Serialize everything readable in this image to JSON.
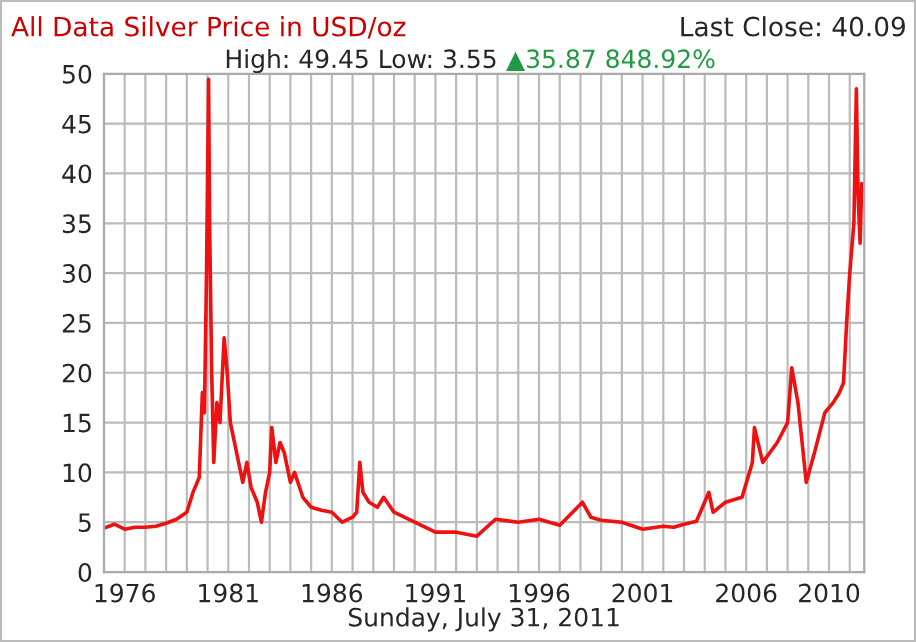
{
  "chart_data": {
    "type": "line",
    "title": "All Data Silver Price in USD/oz",
    "subtitle": "High: 49.45 Low: 3.55",
    "annotations": [
      "Last Close: 40.09",
      "▲35.87 848.92%"
    ],
    "xlabel": "Sunday, July 31, 2011",
    "x": [
      1975.0,
      1975.5,
      1976.0,
      1976.5,
      1977.0,
      1977.5,
      1978.0,
      1978.5,
      1979.0,
      1979.3,
      1979.6,
      1979.75,
      1979.85,
      1979.95,
      1980.05,
      1980.1,
      1980.2,
      1980.3,
      1980.45,
      1980.6,
      1980.8,
      1980.95,
      1981.1,
      1981.4,
      1981.7,
      1981.9,
      1982.1,
      1982.4,
      1982.6,
      1982.8,
      1983.0,
      1983.1,
      1983.3,
      1983.5,
      1983.7,
      1984.0,
      1984.2,
      1984.6,
      1985.0,
      1985.5,
      1986.0,
      1986.5,
      1987.0,
      1987.2,
      1987.35,
      1987.5,
      1987.8,
      1988.2,
      1988.5,
      1989.0,
      1990.0,
      1991.0,
      1992.0,
      1993.0,
      1993.9,
      1995.0,
      1996.0,
      1997.0,
      1998.1,
      1998.5,
      1999.0,
      2000.0,
      2001.0,
      2002.0,
      2002.5,
      2003.0,
      2003.6,
      2004.2,
      2004.4,
      2005.0,
      2005.8,
      2006.3,
      2006.4,
      2006.8,
      2007.5,
      2008.0,
      2008.2,
      2008.5,
      2008.8,
      2008.9,
      2009.3,
      2009.8,
      2010.2,
      2010.5,
      2010.7,
      2010.85,
      2011.0,
      2011.2,
      2011.32,
      2011.4,
      2011.5,
      2011.58
    ],
    "series": [
      {
        "color": "#ee1111",
        "values": [
          4.4,
          4.8,
          4.3,
          4.5,
          4.5,
          4.6,
          4.9,
          5.3,
          6.0,
          8,
          9.5,
          18,
          16,
          30,
          49.45,
          35,
          20,
          11,
          17,
          15,
          23.5,
          20,
          15,
          12,
          9,
          11,
          8.5,
          7,
          5,
          8,
          10,
          14.5,
          11,
          13,
          12,
          9,
          10,
          7.5,
          6.5,
          6.2,
          6,
          5.0,
          5.5,
          6,
          11,
          8,
          7,
          6.5,
          7.5,
          6,
          5,
          4.0,
          4,
          3.6,
          5.3,
          5.0,
          5.3,
          4.7,
          7.0,
          5.5,
          5.2,
          5.0,
          4.3,
          4.6,
          4.5,
          4.8,
          5.1,
          8,
          6,
          7,
          7.5,
          11,
          14.5,
          11,
          13,
          15,
          20.5,
          17,
          11,
          9,
          12,
          16,
          17,
          18,
          19,
          25,
          30,
          35,
          48.5,
          38,
          33,
          39
        ]
      }
    ],
    "xlim": [
      1975.0,
      2011.7
    ],
    "xticks": [
      {
        "value": 1975,
        "label": null
      },
      1976,
      {
        "value": 1977,
        "label": null
      },
      {
        "value": 1978,
        "label": null
      },
      {
        "value": 1979,
        "label": null
      },
      {
        "value": 1980,
        "label": null
      },
      1981,
      {
        "value": 1982,
        "label": null
      },
      {
        "value": 1983,
        "label": null
      },
      {
        "value": 1984,
        "label": null
      },
      {
        "value": 1985,
        "label": null
      },
      1986,
      {
        "value": 1987,
        "label": null
      },
      {
        "value": 1988,
        "label": null
      },
      {
        "value": 1989,
        "label": null
      },
      {
        "value": 1990,
        "label": null
      },
      1991,
      {
        "value": 1992,
        "label": null
      },
      {
        "value": 1993,
        "label": null
      },
      {
        "value": 1994,
        "label": null
      },
      {
        "value": 1995,
        "label": null
      },
      1996,
      {
        "value": 1997,
        "label": null
      },
      {
        "value": 1998,
        "label": null
      },
      {
        "value": 1999,
        "label": null
      },
      {
        "value": 2000,
        "label": null
      },
      2001,
      {
        "value": 2002,
        "label": null
      },
      {
        "value": 2003,
        "label": null
      },
      {
        "value": 2004,
        "label": null
      },
      {
        "value": 2005,
        "label": null
      },
      2006,
      {
        "value": 2007,
        "label": null
      },
      {
        "value": 2008,
        "label": null
      },
      {
        "value": 2009,
        "label": null
      },
      2010,
      {
        "value": 2011,
        "label": null
      }
    ],
    "ylim": [
      0,
      50
    ],
    "yticks": [
      0,
      5,
      10,
      15,
      20,
      25,
      30,
      35,
      40,
      45,
      50
    ],
    "grid": true
  }
}
